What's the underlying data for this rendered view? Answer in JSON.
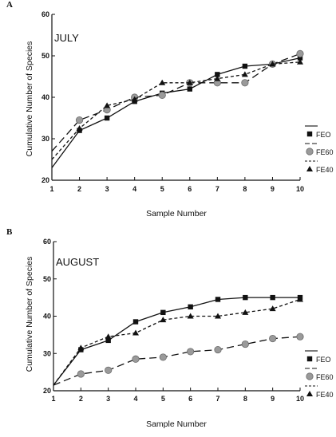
{
  "chart_data": [
    {
      "type": "line",
      "panel_label": "A",
      "title": "JULY",
      "xlabel": "Sample Number",
      "ylabel": "Cumulative Number of Species",
      "xlim": [
        1,
        10
      ],
      "ylim": [
        20,
        60
      ],
      "x_ticks": [
        1,
        2,
        3,
        4,
        5,
        6,
        7,
        8,
        9,
        10
      ],
      "y_ticks": [
        20,
        30,
        40,
        50,
        60
      ],
      "grid": false,
      "legend_position": "right",
      "series": [
        {
          "name": "FEO",
          "marker": "square",
          "line": "solid",
          "x": [
            1,
            2,
            3,
            4,
            5,
            6,
            7,
            8,
            9,
            10
          ],
          "y": [
            23,
            32,
            35,
            39,
            41,
            42,
            45.5,
            47.5,
            48,
            49.5
          ]
        },
        {
          "name": "FE60",
          "marker": "circle",
          "line": "long-dash",
          "x": [
            1,
            2,
            3,
            4,
            5,
            6,
            7,
            8,
            9,
            10
          ],
          "y": [
            27,
            34.5,
            37,
            40,
            40.5,
            43.5,
            43.5,
            43.5,
            48,
            50.5
          ]
        },
        {
          "name": "FE40",
          "marker": "triangle",
          "line": "short-dash",
          "x": [
            1,
            2,
            3,
            4,
            5,
            6,
            7,
            8,
            9,
            10
          ],
          "y": [
            25,
            32.5,
            38,
            39.5,
            43.5,
            43.5,
            44.5,
            45.5,
            48,
            48.5
          ]
        }
      ]
    },
    {
      "type": "line",
      "panel_label": "B",
      "title": "AUGUST",
      "xlabel": "Sample Number",
      "ylabel": "Cumulative Number of Species",
      "xlim": [
        1,
        10
      ],
      "ylim": [
        20,
        60
      ],
      "x_ticks": [
        1,
        2,
        3,
        4,
        5,
        6,
        7,
        8,
        9,
        10
      ],
      "y_ticks": [
        20,
        30,
        40,
        50,
        60
      ],
      "grid": false,
      "legend_position": "right",
      "series": [
        {
          "name": "FEO",
          "marker": "square",
          "line": "solid",
          "x": [
            1,
            2,
            3,
            4,
            5,
            6,
            7,
            8,
            9,
            10
          ],
          "y": [
            21.5,
            31,
            33.5,
            38.5,
            41,
            42.5,
            44.5,
            45,
            45,
            45
          ]
        },
        {
          "name": "FE60",
          "marker": "circle",
          "line": "long-dash",
          "x": [
            1,
            2,
            3,
            4,
            5,
            6,
            7,
            8,
            9,
            10
          ],
          "y": [
            21.5,
            24.5,
            25.5,
            28.5,
            29,
            30.5,
            31,
            32.5,
            34,
            34.5
          ]
        },
        {
          "name": "FE40",
          "marker": "triangle",
          "line": "short-dash",
          "x": [
            1,
            2,
            3,
            4,
            5,
            6,
            7,
            8,
            9,
            10
          ],
          "y": [
            21.5,
            31.5,
            34.5,
            35.5,
            39,
            40,
            40,
            41,
            42,
            44.5
          ]
        }
      ]
    }
  ]
}
